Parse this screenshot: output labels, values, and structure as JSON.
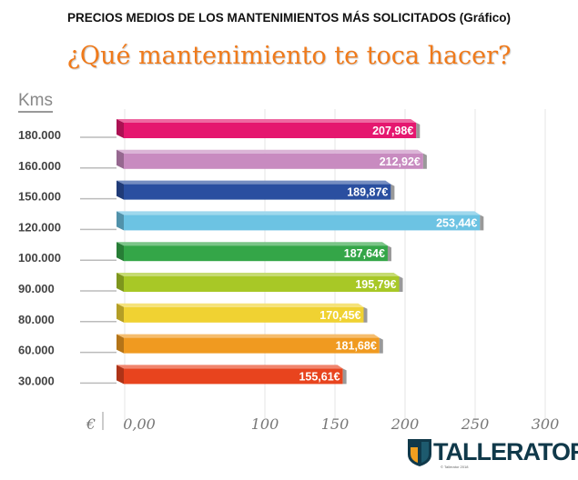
{
  "chart_data": {
    "type": "bar",
    "orientation": "horizontal",
    "title": "PRECIOS MEDIOS DE LOS MANTENIMIENTOS MÁS SOLICITADOS (Gráfico)",
    "subtitle": "¿Qué mantenimiento te toca hacer?",
    "ylabel": "Kms",
    "xlabel": "€",
    "categories": [
      "180.000",
      "160.000",
      "150.000",
      "120.000",
      "100.000",
      "90.000",
      "80.000",
      "60.000",
      "30.000"
    ],
    "values": [
      207.98,
      212.92,
      189.87,
      253.44,
      187.64,
      195.79,
      170.45,
      181.68,
      155.61
    ],
    "value_labels": [
      "207,98€",
      "212,92€",
      "189,87€",
      "253,44€",
      "187,64€",
      "195,79€",
      "170,45€",
      "181,68€",
      "155,61€"
    ],
    "colors": [
      "#e5176f",
      "#c88bc0",
      "#2a4fa0",
      "#6cc3e3",
      "#34a648",
      "#a8c826",
      "#f0d232",
      "#f09a20",
      "#e8441e"
    ],
    "xticks": [
      "0,00",
      "100",
      "150",
      "200",
      "250",
      "300"
    ],
    "xtick_values": [
      0,
      100,
      150,
      200,
      250,
      300
    ],
    "xlim": [
      0,
      300
    ],
    "grid": true
  },
  "logo": {
    "text": "TALLERATOR",
    "copyright": "© Tallerator 2018"
  }
}
